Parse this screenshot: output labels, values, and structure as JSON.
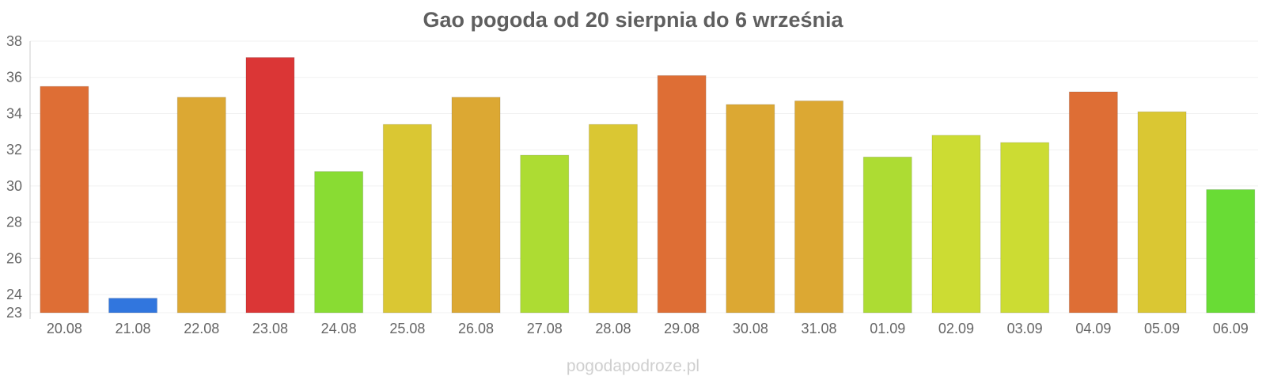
{
  "chart_data": {
    "type": "bar",
    "title": "Gao pogoda od 20 sierpnia do 6 września",
    "xlabel": "",
    "ylabel": "",
    "ylim": [
      23,
      38
    ],
    "yticks": [
      23,
      24,
      26,
      28,
      30,
      32,
      34,
      36,
      38
    ],
    "grid": true,
    "legend": "none",
    "categories": [
      "20.08",
      "21.08",
      "22.08",
      "23.08",
      "24.08",
      "25.08",
      "26.08",
      "27.08",
      "28.08",
      "29.08",
      "30.08",
      "31.08",
      "01.09",
      "02.09",
      "03.09",
      "04.09",
      "05.09",
      "06.09"
    ],
    "values": [
      35.5,
      23.8,
      34.9,
      37.1,
      30.8,
      33.4,
      34.9,
      31.7,
      33.4,
      36.1,
      34.5,
      34.7,
      31.6,
      32.8,
      32.4,
      35.2,
      34.1,
      29.8
    ],
    "colors": [
      "#de6e35",
      "#3176de",
      "#dca833",
      "#db3636",
      "#89dc33",
      "#dac733",
      "#dca833",
      "#addc33",
      "#dac733",
      "#de6e35",
      "#dca833",
      "#dca833",
      "#addc33",
      "#ccdc33",
      "#ccdc33",
      "#de6e35",
      "#dac733",
      "#69dc35"
    ]
  },
  "watermark": "pogodapodroze.pl"
}
